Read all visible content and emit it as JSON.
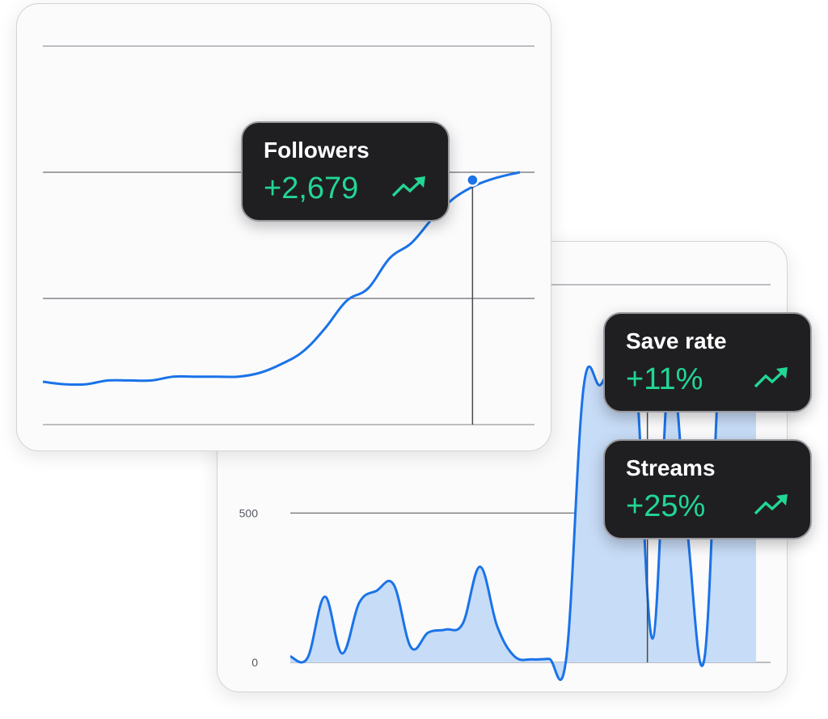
{
  "chart_data": [
    {
      "type": "line",
      "series": [
        {
          "values": [
            170,
            160,
            160,
            175,
            175,
            175,
            190,
            190,
            190,
            190,
            205,
            240,
            290,
            380,
            490,
            540,
            660,
            720,
            820,
            900,
            950,
            980,
            1000
          ]
        }
      ],
      "ylim": [
        0,
        1500
      ],
      "annotation": {
        "label": "Followers",
        "value": "+2,679",
        "trend": "up-arrow-icon"
      }
    },
    {
      "type": "area",
      "series": [
        {
          "values": [
            20,
            15,
            220,
            30,
            200,
            240,
            260,
            50,
            100,
            110,
            130,
            320,
            120,
            20,
            10,
            12,
            15,
            920,
            930,
            1050,
            980,
            80,
            1000,
            450,
            10,
            1100,
            1000,
            1050
          ]
        }
      ],
      "ytick_labels": [
        "500",
        "0"
      ],
      "ylim": [
        0,
        1300
      ],
      "annotations": [
        {
          "label": "Save rate",
          "value": "+11%",
          "trend": "up-arrow-icon"
        },
        {
          "label": "Streams",
          "value": "+25%",
          "trend": "up-arrow-icon"
        }
      ]
    }
  ],
  "colors": {
    "line": "#1a73e8",
    "fill": "#c7dcf7",
    "positive": "#22d694",
    "tooltip_bg": "#1f1f22"
  }
}
